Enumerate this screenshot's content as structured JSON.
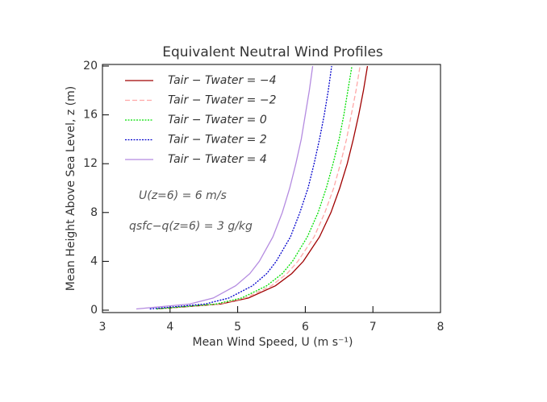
{
  "chart_data": {
    "type": "line",
    "title": "Equivalent Neutral Wind Profiles",
    "xlabel": "Mean Wind Speed, U  (m s⁻¹)",
    "ylabel": "Mean Height Above Sea Level, z (m)",
    "annotations": [
      "U(z=6) = 6 m/s",
      "qsfc−q(z=6) = 3 g/kg"
    ],
    "y": [
      0.1,
      0.5,
      1,
      2,
      3,
      4,
      6,
      8,
      10,
      12,
      14,
      16,
      18,
      20
    ],
    "series": [
      {
        "name": "Tair − Twater = −4",
        "color": "#a00000",
        "dash": "solid",
        "values": [
          3.8,
          4.75,
          5.16,
          5.56,
          5.8,
          5.97,
          6.21,
          6.38,
          6.51,
          6.62,
          6.71,
          6.79,
          6.86,
          6.92
        ]
      },
      {
        "name": "Tair − Twater = −2",
        "color": "#ffa8a8",
        "dash": "dashed",
        "values": [
          3.8,
          4.72,
          5.11,
          5.5,
          5.73,
          5.89,
          6.13,
          6.29,
          6.42,
          6.52,
          6.61,
          6.68,
          6.75,
          6.81
        ]
      },
      {
        "name": "Tair − Twater = 0",
        "color": "#00e000",
        "dash": "dotted",
        "values": [
          3.8,
          4.68,
          5.06,
          5.43,
          5.66,
          5.81,
          6.03,
          6.19,
          6.31,
          6.41,
          6.5,
          6.57,
          6.63,
          6.69
        ]
      },
      {
        "name": "Tair − Twater = 2",
        "color": "#0000cc",
        "dash": "dotted",
        "values": [
          3.7,
          4.52,
          4.87,
          5.22,
          5.43,
          5.57,
          5.78,
          5.92,
          6.04,
          6.13,
          6.21,
          6.28,
          6.34,
          6.39
        ]
      },
      {
        "name": "Tair − Twater = 4",
        "color": "#b48be0",
        "dash": "solid",
        "values": [
          3.5,
          4.29,
          4.64,
          4.97,
          5.18,
          5.32,
          5.52,
          5.66,
          5.77,
          5.86,
          5.94,
          6.0,
          6.06,
          6.11
        ]
      }
    ],
    "xlim": [
      3,
      8
    ],
    "xticks": [
      3,
      4,
      5,
      6,
      7,
      8
    ],
    "ylim": [
      0,
      20
    ],
    "yticks": [
      0,
      4,
      8,
      12,
      16,
      20
    ]
  }
}
